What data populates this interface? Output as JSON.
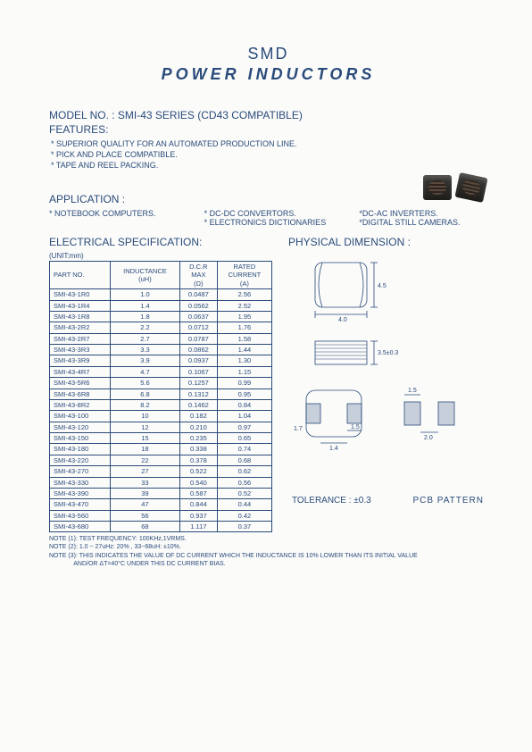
{
  "title1": "SMD",
  "title2": "POWER   INDUCTORS",
  "model_line": "MODEL NO.   : SMI-43 SERIES (CD43 COMPATIBLE)",
  "features_head": "FEATURES:",
  "features": [
    "* SUPERIOR QUALITY FOR AN AUTOMATED PRODUCTION LINE.",
    "* PICK AND PLACE COMPATIBLE.",
    "* TAPE AND REEL PACKING."
  ],
  "application_head": "APPLICATION :",
  "app_cols": [
    "* NOTEBOOK COMPUTERS.",
    "* DC-DC CONVERTORS.\n* ELECTRONICS DICTIONARIES",
    "*DC-AC INVERTERS.\n*DIGITAL STILL CAMERAS."
  ],
  "elec_head": "ELECTRICAL SPECIFICATION:",
  "phys_head": "PHYSICAL DIMENSION :",
  "unit_label": "(UNIT:mm)",
  "table": {
    "headers": [
      "PART   NO.",
      "INDUCTANCE\n(uH)",
      "D.C.R\nMAX\n(Ω)",
      "RATED\nCURRENT\n(A)"
    ],
    "rows": [
      [
        "SMI-43-1R0",
        "1.0",
        "0.0487",
        "2.56"
      ],
      [
        "SMI-43-1R4",
        "1.4",
        "0.0562",
        "2.52"
      ],
      [
        "SMI-43-1R8",
        "1.8",
        "0.0637",
        "1.95"
      ],
      [
        "SMI-43-2R2",
        "2.2",
        "0.0712",
        "1.76"
      ],
      [
        "SMI-43-2R7",
        "2.7",
        "0.0787",
        "1.58"
      ],
      [
        "SMI-43-3R3",
        "3.3",
        "0.0862",
        "1.44"
      ],
      [
        "SMI-43-3R9",
        "3.9",
        "0.0937",
        "1.30"
      ],
      [
        "SMI-43-4R7",
        "4.7",
        "0.1067",
        "1.15"
      ],
      [
        "SMI-43-5R6",
        "5.6",
        "0.1257",
        "0.99"
      ],
      [
        "SMI-43-6R8",
        "6.8",
        "0.1312",
        "0.95"
      ],
      [
        "SMI-43-8R2",
        "8.2",
        "0.1462",
        "0.84"
      ],
      [
        "SMI-43-100",
        "10",
        "0.182",
        "1.04"
      ],
      [
        "SMI-43-120",
        "12",
        "0.210",
        "0.97"
      ],
      [
        "SMI-43-150",
        "15",
        "0.235",
        "0.65"
      ],
      [
        "SMI-43-180",
        "18",
        "0.338",
        "0.74"
      ],
      [
        "SMI-43-220",
        "22",
        "0.378",
        "0.68"
      ],
      [
        "SMI-43-270",
        "27",
        "0.522",
        "0.62"
      ],
      [
        "SMI-43-330",
        "33",
        "0.540",
        "0.56"
      ],
      [
        "SMI-43-390",
        "39",
        "0.587",
        "0.52"
      ],
      [
        "SMI-43-470",
        "47",
        "0.844",
        "0.44"
      ],
      [
        "SMI-43-560",
        "56",
        "0.937",
        "0.42"
      ],
      [
        "SMI-43-680",
        "68",
        "1.117",
        "0.37"
      ]
    ]
  },
  "notes": [
    "NOTE (1): TEST FREQUENCY: 100KHz,1VRMS.",
    "NOTE (2): 1.0 ~ 27uHz: 20% , 33~68uH: ±10%.",
    "NOTE (3): THIS INDICATES THE VALUE OF DC CURRENT WHICH THE INDUCTANCE IS 10% LOWER THAN ITS INITIAL VALUE",
    "              AND/OR  ΔT=40°C  UNDER THIS DC CURRENT BIAS."
  ],
  "dim": {
    "top_w": "4.0",
    "top_h": "4.5",
    "side_h": "3.5±0.3",
    "pad_outer": "1.7",
    "pad_gap": "1.4",
    "pad_inner": "1.5",
    "pcb_w": "2.0",
    "pcb_h": "1.5"
  },
  "tolerance_label": "TOLERANCE : ±0.3",
  "pcb_pattern_label": "PCB  PATTERN",
  "colors": {
    "text": "#2a4b7a",
    "line": "#2a4b7a",
    "bg": "#fbfbfa"
  }
}
